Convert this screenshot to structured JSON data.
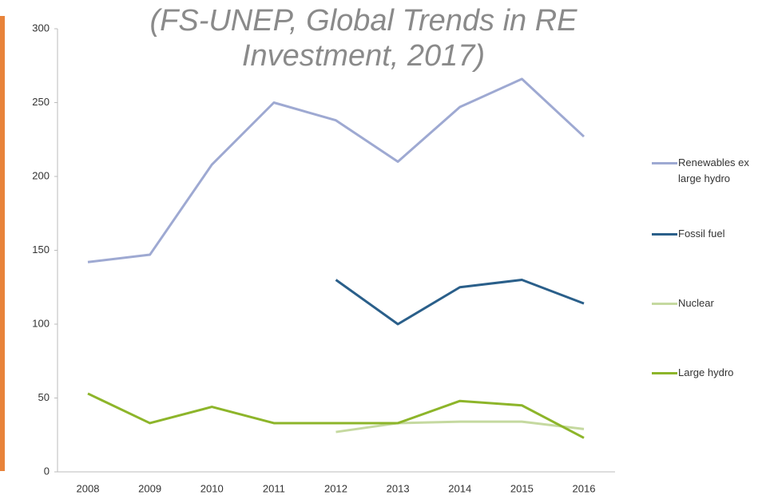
{
  "chart_data": {
    "type": "line",
    "title": "(FS-UNEP,  Global Trends in RE Investment, 2017)",
    "categories": [
      "2008",
      "2009",
      "2010",
      "2011",
      "2012",
      "2013",
      "2014",
      "2015",
      "2016"
    ],
    "series": [
      {
        "name": "Renewables ex large hydro",
        "color": "#9ea9d2",
        "values": [
          142,
          147,
          208,
          250,
          238,
          210,
          247,
          266,
          227
        ]
      },
      {
        "name": "Fossil fuel",
        "color": "#2a5f8a",
        "values": [
          null,
          null,
          null,
          null,
          130,
          100,
          125,
          130,
          114
        ]
      },
      {
        "name": "Nuclear",
        "color": "#c5d9a0",
        "values": [
          null,
          null,
          null,
          null,
          27,
          33,
          34,
          34,
          29
        ]
      },
      {
        "name": "Large hydro",
        "color": "#8db52a",
        "values": [
          53,
          33,
          44,
          33,
          33,
          33,
          48,
          45,
          23
        ]
      }
    ],
    "ylim": [
      0,
      300
    ],
    "yticks": [
      0,
      50,
      100,
      150,
      200,
      250,
      300
    ]
  }
}
